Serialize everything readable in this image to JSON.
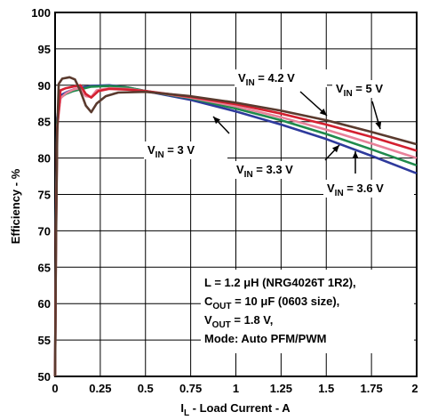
{
  "chart_data": {
    "type": "line",
    "xlabel": {
      "main": "I",
      "sub": "L",
      "rest": " - Load Current - A"
    },
    "ylabel": "Efficiency - %",
    "xlim": [
      0,
      2
    ],
    "ylim": [
      50,
      100
    ],
    "x_ticks": [
      "0",
      "0.25",
      "0.5",
      "0.75",
      "1",
      "1.25",
      "1.5",
      "1.75",
      "2"
    ],
    "y_ticks": [
      "50",
      "55",
      "60",
      "65",
      "70",
      "75",
      "80",
      "85",
      "90",
      "95",
      "100"
    ],
    "grid": true,
    "series": [
      {
        "name": "V_IN = 3 V",
        "color": "#2e3a9c",
        "points": [
          [
            0.0,
            50
          ],
          [
            0.005,
            72
          ],
          [
            0.012,
            85.5
          ],
          [
            0.03,
            88.6
          ],
          [
            0.06,
            89.0
          ],
          [
            0.1,
            89.4
          ],
          [
            0.15,
            89.7
          ],
          [
            0.2,
            89.9
          ],
          [
            0.3,
            90.0
          ],
          [
            0.4,
            89.7
          ],
          [
            0.5,
            89.2
          ],
          [
            0.75,
            88.0
          ],
          [
            1.0,
            86.4
          ],
          [
            1.25,
            84.6
          ],
          [
            1.5,
            82.6
          ],
          [
            1.75,
            80.3
          ],
          [
            2.0,
            77.9
          ]
        ]
      },
      {
        "name": "V_IN = 3.3 V",
        "color": "#1f8a4c",
        "points": [
          [
            0.0,
            50
          ],
          [
            0.005,
            71
          ],
          [
            0.012,
            85.0
          ],
          [
            0.03,
            88.3
          ],
          [
            0.06,
            88.8
          ],
          [
            0.1,
            89.2
          ],
          [
            0.15,
            89.5
          ],
          [
            0.2,
            89.8
          ],
          [
            0.3,
            89.9
          ],
          [
            0.4,
            89.7
          ],
          [
            0.5,
            89.2
          ],
          [
            0.75,
            88.2
          ],
          [
            1.0,
            86.8
          ],
          [
            1.25,
            85.2
          ],
          [
            1.5,
            83.3
          ],
          [
            1.75,
            81.2
          ],
          [
            2.0,
            79.0
          ]
        ]
      },
      {
        "name": "V_IN = 3.6 V",
        "color": "#e8829a",
        "points": [
          [
            0.0,
            50
          ],
          [
            0.005,
            70
          ],
          [
            0.012,
            84.5
          ],
          [
            0.03,
            88.2
          ],
          [
            0.06,
            88.9
          ],
          [
            0.1,
            89.4
          ],
          [
            0.13,
            89.6
          ],
          [
            0.17,
            88.5
          ],
          [
            0.2,
            88.4
          ],
          [
            0.23,
            89.3
          ],
          [
            0.3,
            89.6
          ],
          [
            0.4,
            89.5
          ],
          [
            0.5,
            89.2
          ],
          [
            0.75,
            88.3
          ],
          [
            1.0,
            87.1
          ],
          [
            1.25,
            85.6
          ],
          [
            1.5,
            83.9
          ],
          [
            1.75,
            82.0
          ],
          [
            2.0,
            80.0
          ]
        ]
      },
      {
        "name": "V_IN = 4.2 V",
        "color": "#d42030",
        "points": [
          [
            0.0,
            50
          ],
          [
            0.005,
            69
          ],
          [
            0.012,
            84.0
          ],
          [
            0.03,
            89.3
          ],
          [
            0.06,
            89.6
          ],
          [
            0.1,
            89.8
          ],
          [
            0.14,
            90.0
          ],
          [
            0.17,
            88.8
          ],
          [
            0.2,
            88.3
          ],
          [
            0.24,
            89.2
          ],
          [
            0.3,
            89.5
          ],
          [
            0.4,
            89.4
          ],
          [
            0.5,
            89.2
          ],
          [
            0.75,
            88.4
          ],
          [
            1.0,
            87.4
          ],
          [
            1.25,
            86.1
          ],
          [
            1.5,
            84.6
          ],
          [
            1.75,
            82.9
          ],
          [
            2.0,
            81.0
          ]
        ]
      },
      {
        "name": "V_IN = 5 V",
        "color": "#5a3a2e",
        "points": [
          [
            0.0,
            50
          ],
          [
            0.005,
            68
          ],
          [
            0.012,
            83.5
          ],
          [
            0.02,
            90.2
          ],
          [
            0.04,
            90.9
          ],
          [
            0.08,
            91.1
          ],
          [
            0.11,
            90.8
          ],
          [
            0.14,
            89.2
          ],
          [
            0.17,
            87.2
          ],
          [
            0.2,
            86.3
          ],
          [
            0.23,
            87.5
          ],
          [
            0.28,
            88.5
          ],
          [
            0.35,
            89.0
          ],
          [
            0.5,
            89.1
          ],
          [
            0.75,
            88.5
          ],
          [
            1.0,
            87.6
          ],
          [
            1.25,
            86.5
          ],
          [
            1.5,
            85.2
          ],
          [
            1.75,
            83.6
          ],
          [
            2.0,
            81.9
          ]
        ]
      }
    ],
    "annotations": [
      {
        "text": "V_IN = 3 V"
      },
      {
        "text": "V_IN = 3.3 V"
      },
      {
        "text": "V_IN = 3.6 V"
      },
      {
        "text": "V_IN = 4.2 V"
      },
      {
        "text": "V_IN = 5 V"
      }
    ],
    "conditions": [
      "L = 1.2 μH (NRG4026T 1R2),",
      "C_OUT = 10 μF (0603 size),",
      "V_OUT = 1.8 V,",
      "Mode: Auto PFM/PWM"
    ]
  }
}
